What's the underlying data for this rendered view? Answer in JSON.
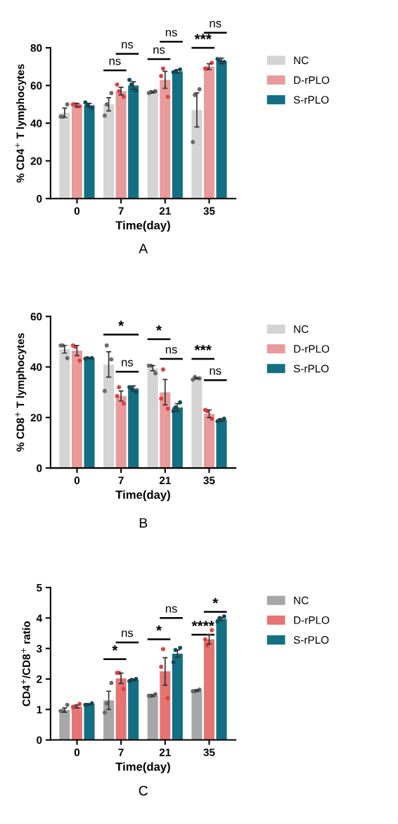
{
  "chart_data": [
    {
      "type": "bar",
      "title": "A",
      "xlabel": "Time(day)",
      "ylabel": "% CD4$^{+}$ T lymphocytes",
      "categories": [
        "0",
        "7",
        "21",
        "35"
      ],
      "ylim": [
        0,
        80
      ],
      "yticks": [
        0,
        20,
        40,
        60,
        80
      ],
      "grid": false,
      "legend": "right",
      "annotations": [
        "ns",
        "ns",
        "ns",
        "ns",
        "***",
        "ns"
      ],
      "series": [
        {
          "name": "NC",
          "color": "#d4d4d4",
          "values": [
            45.5,
            50,
            56.5,
            47
          ],
          "errors": [
            2.5,
            3.5,
            0.5,
            9
          ]
        },
        {
          "name": "D-rPLO",
          "color": "#e99a9a",
          "values": [
            49.5,
            57,
            63,
            70
          ],
          "errors": [
            1,
            2,
            4.5,
            1.5
          ]
        },
        {
          "name": "S-rPLO",
          "color": "#136f83",
          "values": [
            49.5,
            60,
            67.5,
            73
          ],
          "errors": [
            1,
            2,
            1,
            1.5
          ]
        },
        {
          "type": "scatter",
          "color": "#6b6b6b",
          "x": [
            "0",
            "0",
            "0",
            "7",
            "7",
            "7",
            "21",
            "21",
            "21",
            "35",
            "35",
            "35"
          ],
          "values": [
            43.5,
            50,
            43.5,
            44,
            56,
            50,
            56,
            57,
            56.5,
            30,
            58,
            55
          ]
        },
        {
          "type": "scatter",
          "color": "#e0403f",
          "x": [
            "0",
            "0",
            "0",
            "7",
            "7",
            "7",
            "21",
            "21",
            "21",
            "35",
            "35",
            "35"
          ],
          "values": [
            50,
            49,
            50,
            60.5,
            54,
            57,
            65,
            54,
            69,
            69,
            72,
            69
          ]
        },
        {
          "type": "scatter",
          "color": "#0e4f5e",
          "x": [
            "0",
            "0",
            "0",
            "7",
            "7",
            "7",
            "21",
            "21",
            "21",
            "35",
            "35",
            "35"
          ],
          "values": [
            51,
            48,
            49.5,
            63,
            57.5,
            60.5,
            67,
            68.5,
            67.5,
            74,
            72.5,
            73
          ]
        }
      ]
    },
    {
      "type": "bar",
      "title": "B",
      "xlabel": "Time(day)",
      "ylabel": "% CD8$^{+}$ T lymphocytes",
      "categories": [
        "0",
        "7",
        "21",
        "35"
      ],
      "ylim": [
        0,
        60
      ],
      "yticks": [
        0,
        20,
        40,
        60
      ],
      "grid": false,
      "legend": "right",
      "annotations": [
        "*",
        "ns",
        "*",
        "ns",
        "***",
        "ns"
      ],
      "series": [
        {
          "name": "NC",
          "color": "#d4d4d4",
          "values": [
            47,
            41,
            39.5,
            35.5
          ],
          "errors": [
            1.5,
            5,
            1,
            0.3
          ]
        },
        {
          "name": "D-rPLO",
          "color": "#e99a9a",
          "values": [
            46.5,
            28.5,
            30,
            21.5
          ],
          "errors": [
            2,
            2,
            5,
            1.5
          ]
        },
        {
          "name": "S-rPLO",
          "color": "#136f83",
          "values": [
            43.5,
            31.5,
            24,
            19
          ],
          "errors": [
            0.2,
            1,
            1.5,
            0.5
          ]
        },
        {
          "type": "scatter",
          "color": "#6b6b6b",
          "x": [
            "0",
            "0",
            "0",
            "7",
            "7",
            "7",
            "21",
            "21",
            "21",
            "35",
            "35",
            "35"
          ],
          "values": [
            48.5,
            43.5,
            48.5,
            30.5,
            43,
            48.5,
            40.5,
            37.5,
            40.5,
            35,
            35.5,
            36
          ]
        },
        {
          "type": "scatter",
          "color": "#e0403f",
          "x": [
            "0",
            "0",
            "0",
            "7",
            "7",
            "7",
            "21",
            "21",
            "21",
            "35",
            "35",
            "35"
          ],
          "values": [
            48.5,
            42.5,
            48,
            28.5,
            25.5,
            32,
            27.5,
            23.5,
            39,
            23,
            19.5,
            22.5
          ]
        },
        {
          "type": "scatter",
          "color": "#0e4f5e",
          "x": [
            "0",
            "0",
            "0",
            "7",
            "7",
            "7",
            "21",
            "21",
            "21",
            "35",
            "35",
            "35"
          ],
          "values": [
            43.3,
            43.5,
            43.5,
            32,
            30,
            31.5,
            22.5,
            26,
            24,
            18.5,
            19.5,
            19
          ]
        }
      ]
    },
    {
      "type": "bar",
      "title": "C",
      "xlabel": "Time(day)",
      "ylabel": "CD4$^{+}$/CD8$^{+}$ ratio",
      "categories": [
        "0",
        "7",
        "21",
        "35"
      ],
      "ylim": [
        0,
        5
      ],
      "yticks": [
        0,
        1,
        2,
        3,
        4,
        5
      ],
      "grid": false,
      "legend": "right",
      "annotations": [
        "*",
        "ns",
        "*",
        "ns",
        "****",
        "*"
      ],
      "series": [
        {
          "name": "NC",
          "color": "#a7a7aa",
          "values": [
            0.98,
            1.3,
            1.45,
            1.62
          ],
          "errors": [
            0.07,
            0.3,
            0.03,
            0.03
          ]
        },
        {
          "name": "D-rPLO",
          "color": "#e57474",
          "values": [
            1.1,
            2.02,
            2.25,
            3.3
          ],
          "errors": [
            0.05,
            0.17,
            0.45,
            0.15
          ]
        },
        {
          "name": "S-rPLO",
          "color": "#136f83",
          "values": [
            1.17,
            1.97,
            2.83,
            3.97
          ],
          "errors": [
            0.02,
            0.03,
            0.12,
            0.05
          ]
        },
        {
          "type": "scatter",
          "color": "#6b6b6b",
          "x": [
            "0",
            "0",
            "0",
            "7",
            "7",
            "7",
            "21",
            "21",
            "21",
            "35",
            "35",
            "35"
          ],
          "values": [
            0.95,
            1.15,
            0.95,
            0.9,
            1.87,
            1.2,
            1.45,
            1.5,
            1.45,
            1.6,
            1.65,
            1.6
          ]
        },
        {
          "type": "scatter",
          "color": "#e0403f",
          "x": [
            "0",
            "0",
            "0",
            "7",
            "7",
            "7",
            "21",
            "21",
            "21",
            "35",
            "35",
            "35"
          ],
          "values": [
            1.08,
            1.18,
            1.1,
            2.2,
            1.67,
            2.2,
            2.4,
            1.37,
            2.98,
            3.3,
            3.6,
            3.1
          ]
        },
        {
          "type": "scatter",
          "color": "#0e4f5e",
          "x": [
            "0",
            "0",
            "0",
            "7",
            "7",
            "7",
            "21",
            "21",
            "21",
            "35",
            "35",
            "35"
          ],
          "values": [
            1.15,
            1.2,
            1.15,
            1.93,
            2.0,
            1.97,
            2.55,
            3.02,
            2.95,
            3.88,
            4.05,
            4.0
          ]
        }
      ]
    }
  ]
}
